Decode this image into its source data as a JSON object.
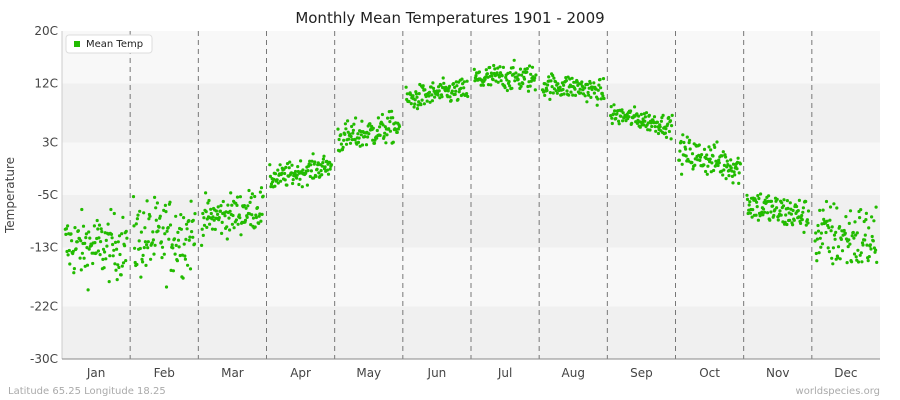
{
  "chart_data": {
    "type": "scatter",
    "title": "Monthly Mean Temperatures 1901 - 2009",
    "ylabel": "Temperature",
    "xlabel": "",
    "categories": [
      "Jan",
      "Feb",
      "Mar",
      "Apr",
      "May",
      "Jun",
      "Jul",
      "Aug",
      "Sep",
      "Oct",
      "Nov",
      "Dec"
    ],
    "yticks": [
      {
        "value": 20,
        "label": "20C"
      },
      {
        "value": 12,
        "label": "12C"
      },
      {
        "value": 3,
        "label": "3C"
      },
      {
        "value": -5,
        "label": "-5C"
      },
      {
        "value": -13,
        "label": "-13C"
      },
      {
        "value": -22,
        "label": "-22C"
      },
      {
        "value": -30,
        "label": "-30C"
      }
    ],
    "ylim": [
      -30,
      20
    ],
    "legend": {
      "label": "Mean Temp",
      "position": "top-left"
    },
    "series": [
      {
        "name": "Mean Temp",
        "color": "#22bb00",
        "years": [
          1901,
          2009
        ],
        "monthly_distribution": [
          {
            "month": "Jan",
            "mean": -13.0,
            "min": -22.5,
            "max": -5.5
          },
          {
            "month": "Feb",
            "mean": -11.5,
            "min": -23.0,
            "max": -3.0
          },
          {
            "month": "Mar",
            "mean": -8.0,
            "min": -14.0,
            "max": -2.0
          },
          {
            "month": "Apr",
            "mean": -1.5,
            "min": -4.5,
            "max": 2.0
          },
          {
            "month": "May",
            "mean": 4.5,
            "min": 1.5,
            "max": 9.0
          },
          {
            "month": "Jun",
            "mean": 10.5,
            "min": 7.5,
            "max": 14.0
          },
          {
            "month": "Jul",
            "mean": 13.0,
            "min": 10.0,
            "max": 17.0
          },
          {
            "month": "Aug",
            "mean": 11.5,
            "min": 8.5,
            "max": 15.0
          },
          {
            "month": "Sep",
            "mean": 6.5,
            "min": 3.5,
            "max": 9.5
          },
          {
            "month": "Oct",
            "mean": 0.5,
            "min": -4.5,
            "max": 5.0
          },
          {
            "month": "Nov",
            "mean": -7.5,
            "min": -12.5,
            "max": -3.0
          },
          {
            "month": "Dec",
            "mean": -11.5,
            "min": -21.5,
            "max": -4.5
          }
        ]
      }
    ],
    "grid": {
      "vertical_dashed_month_separators": true,
      "horizontal_bands": true
    }
  },
  "footer": {
    "left": "Latitude 65.25 Longitude 18.25",
    "right": "worldspecies.org"
  }
}
